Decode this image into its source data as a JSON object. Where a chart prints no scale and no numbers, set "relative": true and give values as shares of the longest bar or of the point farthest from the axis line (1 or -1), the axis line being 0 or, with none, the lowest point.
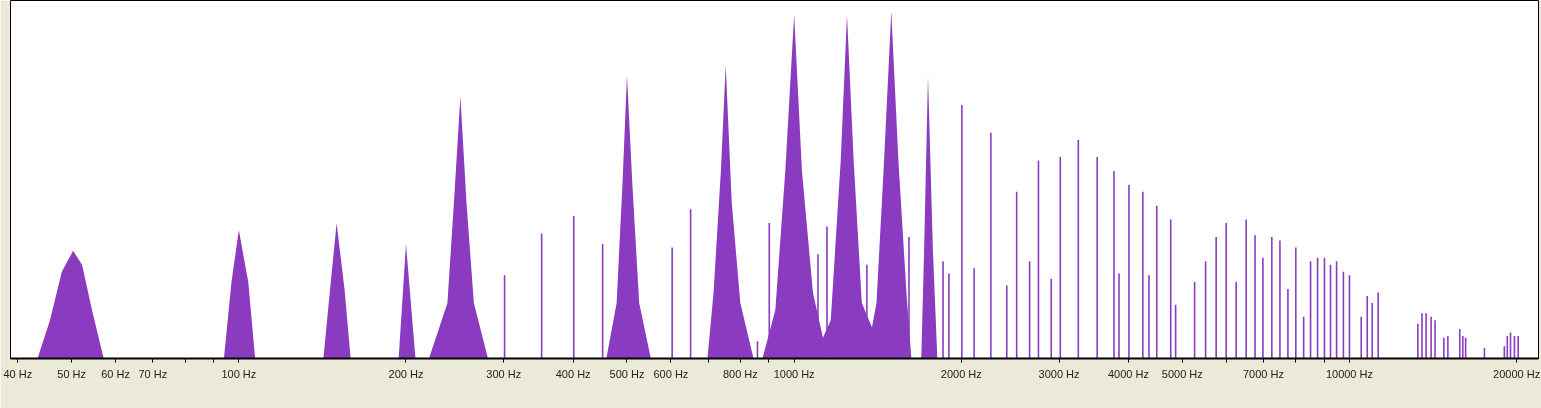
{
  "chart_data": {
    "type": "area",
    "relative": true,
    "log": "x",
    "grid": false,
    "xlim": [
      38.8,
      21900
    ],
    "xticks": [
      {
        "value": 40,
        "label": "40 Hz"
      },
      {
        "value": 50,
        "label": "50 Hz"
      },
      {
        "value": 60,
        "label": "60 Hz"
      },
      {
        "value": 70,
        "label": "70 Hz"
      },
      {
        "value": 80,
        "label": null
      },
      {
        "value": 90,
        "label": null
      },
      {
        "value": 100,
        "label": "100 Hz"
      },
      {
        "value": 200,
        "label": "200 Hz"
      },
      {
        "value": 300,
        "label": "300 Hz"
      },
      {
        "value": 400,
        "label": "400 Hz"
      },
      {
        "value": 500,
        "label": "500 Hz"
      },
      {
        "value": 600,
        "label": "600 Hz"
      },
      {
        "value": 700,
        "label": null
      },
      {
        "value": 800,
        "label": "800 Hz"
      },
      {
        "value": 900,
        "label": null
      },
      {
        "value": 1000,
        "label": "1000 Hz"
      },
      {
        "value": 2000,
        "label": "2000 Hz"
      },
      {
        "value": 3000,
        "label": "3000 Hz"
      },
      {
        "value": 4000,
        "label": "4000 Hz"
      },
      {
        "value": 5000,
        "label": "5000 Hz"
      },
      {
        "value": 6000,
        "label": null
      },
      {
        "value": 7000,
        "label": "7000 Hz"
      },
      {
        "value": 8000,
        "label": null
      },
      {
        "value": 9000,
        "label": null
      },
      {
        "value": 10000,
        "label": "10000 Hz"
      },
      {
        "value": 20000,
        "label": "20000 Hz"
      }
    ],
    "series": [
      {
        "color": "#8a3bc0",
        "x": [
          43.4,
          45.7,
          48,
          50.3,
          52.2,
          54.4,
          57.1,
          94,
          97,
          100,
          104,
          107,
          142,
          146,
          150,
          155,
          159,
          194,
          200,
          208,
          220,
          237.5,
          244,
          250.6,
          257,
          265,
          281,
          459,
          479,
          491,
          500,
          511,
          526,
          552,
          698,
          716,
          738,
          753,
          772,
          800,
          845,
          877,
          925,
          964,
          1000,
          1033,
          1081,
          1127,
          1164,
          1213,
          1245,
          1280,
          1324,
          1381,
          1407,
          1452,
          1496,
          1541,
          1593,
          1626,
          1694,
          1714,
          1742,
          1778,
          1811
        ],
        "values": [
          0,
          0.11,
          0.25,
          0.31,
          0.27,
          0.14,
          0,
          0,
          0.22,
          0.37,
          0.22,
          0,
          0,
          0.2,
          0.39,
          0.2,
          0,
          0,
          0.33,
          0,
          0,
          0.16,
          0.45,
          0.755,
          0.45,
          0.16,
          0,
          0,
          0.16,
          0.51,
          0.815,
          0.51,
          0.16,
          0,
          0,
          0.19,
          0.54,
          0.845,
          0.45,
          0.16,
          0,
          0,
          0.14,
          0.54,
          0.99,
          0.54,
          0.19,
          0.06,
          0.11,
          0.57,
          0.99,
          0.57,
          0.16,
          0.09,
          0.16,
          0.57,
          1.0,
          0.57,
          0.19,
          0,
          0,
          0.31,
          0.815,
          0.31,
          0
        ]
      },
      {
        "type": "bar",
        "color": "#8a3bc0",
        "x": [
          301,
          351,
          401,
          452,
          603,
          651,
          859,
          902,
          1104,
          1146,
          1352,
          1610,
          1854,
          1900,
          2005,
          2109,
          2261,
          2415,
          2516,
          2655,
          2754,
          2904,
          3015,
          3249,
          3513,
          3767,
          3846,
          4008,
          4246,
          4355,
          4498,
          4766,
          4864,
          5262,
          5508,
          5754,
          5998,
          6252,
          6516,
          6761,
          6985,
          7248,
          7496,
          7748,
          8006,
          8271,
          8511,
          8762,
          9016,
          9245,
          9480,
          9753,
          10000,
          10500,
          10766,
          10990,
          11264,
          13280,
          13510,
          13740,
          14030,
          14260,
          14790,
          15040,
          15800,
          16000,
          16190,
          17500,
          19010,
          19240,
          19500,
          19820,
          20130
        ],
        "values": [
          0.24,
          0.36,
          0.41,
          0.33,
          0.32,
          0.43,
          0.05,
          0.39,
          0.3,
          0.38,
          0.27,
          0.35,
          0.28,
          0.245,
          0.73,
          0.26,
          0.65,
          0.21,
          0.48,
          0.28,
          0.57,
          0.23,
          0.58,
          0.63,
          0.58,
          0.54,
          0.245,
          0.5,
          0.48,
          0.24,
          0.44,
          0.4,
          0.155,
          0.22,
          0.28,
          0.35,
          0.39,
          0.22,
          0.4,
          0.355,
          0.29,
          0.35,
          0.34,
          0.2,
          0.32,
          0.12,
          0.28,
          0.29,
          0.29,
          0.27,
          0.28,
          0.25,
          0.24,
          0.12,
          0.18,
          0.16,
          0.19,
          0.1,
          0.13,
          0.13,
          0.12,
          0.11,
          0.06,
          0.065,
          0.085,
          0.065,
          0.06,
          0.03,
          0.035,
          0.065,
          0.075,
          0.065,
          0.065
        ]
      }
    ]
  }
}
